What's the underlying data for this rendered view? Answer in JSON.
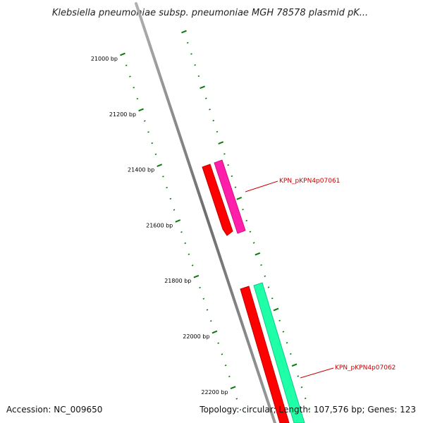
{
  "title": "Klebsiella pneumoniae subsp. pneumoniae MGH 78578 plasmid pK...",
  "scale_labels": [
    "21000 bp",
    "21200 bp",
    "21400 bp",
    "21600 bp",
    "21800 bp",
    "22000 bp",
    "22200 bp"
  ],
  "genes": [
    {
      "label": "KPN_pKPN4p07061",
      "color": "#ff1fa8"
    },
    {
      "label": "KPN_pKPN4p07062",
      "color": "#1effa8"
    }
  ],
  "colors": {
    "backbone": "#7a7a7a",
    "ticks": "#0a7a0a",
    "forward_cds": "#ff0000",
    "label_text": "#cc0000"
  },
  "footer": {
    "accession": "Accession: NC_009650",
    "summary": "Topology: circular; Length: 107,576 bp; Genes: 123"
  }
}
